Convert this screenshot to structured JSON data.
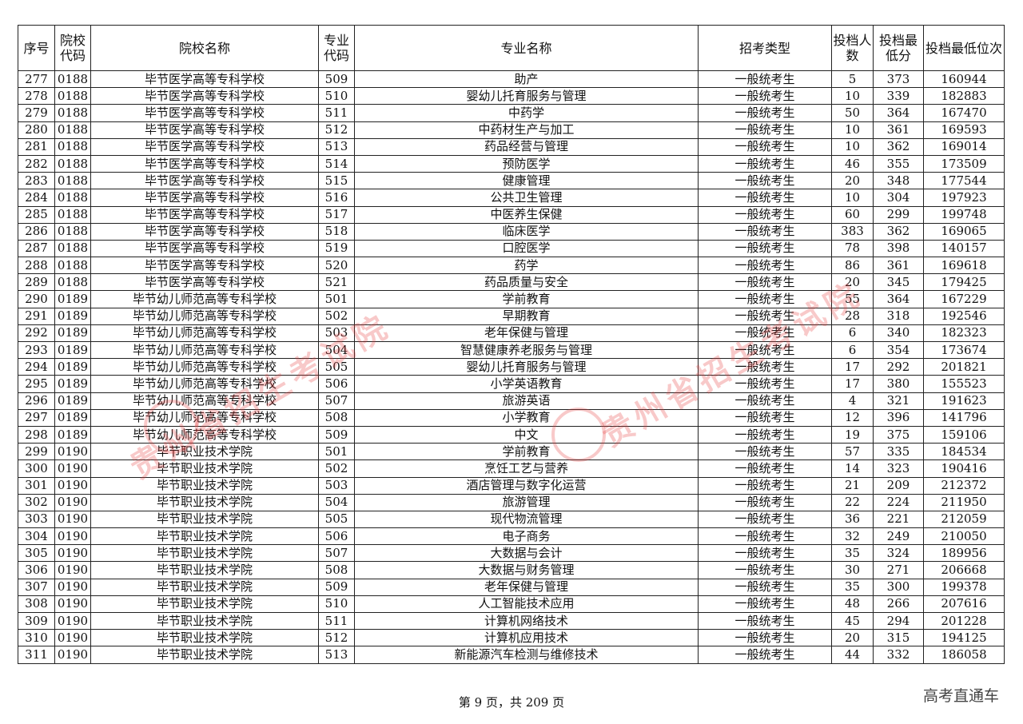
{
  "headers": [
    "序号",
    "院校代码",
    "院校名称",
    "专业代码",
    "专业名称",
    "招考类型",
    "投档人数",
    "投档最低分",
    "投档最低位次"
  ],
  "rows": [
    [
      "277",
      "0188",
      "毕节医学高等专科学校",
      "509",
      "助产",
      "一般统考生",
      "5",
      "373",
      "160944"
    ],
    [
      "278",
      "0188",
      "毕节医学高等专科学校",
      "510",
      "婴幼儿托育服务与管理",
      "一般统考生",
      "10",
      "339",
      "182883"
    ],
    [
      "279",
      "0188",
      "毕节医学高等专科学校",
      "511",
      "中药学",
      "一般统考生",
      "50",
      "364",
      "167470"
    ],
    [
      "280",
      "0188",
      "毕节医学高等专科学校",
      "512",
      "中药材生产与加工",
      "一般统考生",
      "10",
      "361",
      "169593"
    ],
    [
      "281",
      "0188",
      "毕节医学高等专科学校",
      "513",
      "药品经营与管理",
      "一般统考生",
      "10",
      "362",
      "169014"
    ],
    [
      "282",
      "0188",
      "毕节医学高等专科学校",
      "514",
      "预防医学",
      "一般统考生",
      "46",
      "355",
      "173509"
    ],
    [
      "283",
      "0188",
      "毕节医学高等专科学校",
      "515",
      "健康管理",
      "一般统考生",
      "20",
      "348",
      "177544"
    ],
    [
      "284",
      "0188",
      "毕节医学高等专科学校",
      "516",
      "公共卫生管理",
      "一般统考生",
      "10",
      "304",
      "197923"
    ],
    [
      "285",
      "0188",
      "毕节医学高等专科学校",
      "517",
      "中医养生保健",
      "一般统考生",
      "60",
      "299",
      "199748"
    ],
    [
      "286",
      "0188",
      "毕节医学高等专科学校",
      "518",
      "临床医学",
      "一般统考生",
      "383",
      "362",
      "169065"
    ],
    [
      "287",
      "0188",
      "毕节医学高等专科学校",
      "519",
      "口腔医学",
      "一般统考生",
      "78",
      "398",
      "140157"
    ],
    [
      "288",
      "0188",
      "毕节医学高等专科学校",
      "520",
      "药学",
      "一般统考生",
      "86",
      "361",
      "169618"
    ],
    [
      "289",
      "0188",
      "毕节医学高等专科学校",
      "521",
      "药品质量与安全",
      "一般统考生",
      "20",
      "345",
      "179425"
    ],
    [
      "290",
      "0189",
      "毕节幼儿师范高等专科学校",
      "501",
      "学前教育",
      "一般统考生",
      "55",
      "364",
      "167229"
    ],
    [
      "291",
      "0189",
      "毕节幼儿师范高等专科学校",
      "502",
      "早期教育",
      "一般统考生",
      "28",
      "318",
      "192546"
    ],
    [
      "292",
      "0189",
      "毕节幼儿师范高等专科学校",
      "503",
      "老年保健与管理",
      "一般统考生",
      "6",
      "340",
      "182323"
    ],
    [
      "293",
      "0189",
      "毕节幼儿师范高等专科学校",
      "504",
      "智慧健康养老服务与管理",
      "一般统考生",
      "6",
      "354",
      "173674"
    ],
    [
      "294",
      "0189",
      "毕节幼儿师范高等专科学校",
      "505",
      "婴幼儿托育服务与管理",
      "一般统考生",
      "17",
      "292",
      "201821"
    ],
    [
      "295",
      "0189",
      "毕节幼儿师范高等专科学校",
      "506",
      "小学英语教育",
      "一般统考生",
      "17",
      "380",
      "155523"
    ],
    [
      "296",
      "0189",
      "毕节幼儿师范高等专科学校",
      "507",
      "旅游英语",
      "一般统考生",
      "4",
      "321",
      "191623"
    ],
    [
      "297",
      "0189",
      "毕节幼儿师范高等专科学校",
      "508",
      "小学教育",
      "一般统考生",
      "12",
      "396",
      "141796"
    ],
    [
      "298",
      "0189",
      "毕节幼儿师范高等专科学校",
      "509",
      "中文",
      "一般统考生",
      "19",
      "375",
      "159106"
    ],
    [
      "299",
      "0190",
      "毕节职业技术学院",
      "501",
      "学前教育",
      "一般统考生",
      "57",
      "335",
      "184534"
    ],
    [
      "300",
      "0190",
      "毕节职业技术学院",
      "502",
      "烹饪工艺与营养",
      "一般统考生",
      "14",
      "323",
      "190416"
    ],
    [
      "301",
      "0190",
      "毕节职业技术学院",
      "503",
      "酒店管理与数字化运营",
      "一般统考生",
      "21",
      "209",
      "212372"
    ],
    [
      "302",
      "0190",
      "毕节职业技术学院",
      "504",
      "旅游管理",
      "一般统考生",
      "22",
      "224",
      "211950"
    ],
    [
      "303",
      "0190",
      "毕节职业技术学院",
      "505",
      "现代物流管理",
      "一般统考生",
      "36",
      "221",
      "212059"
    ],
    [
      "304",
      "0190",
      "毕节职业技术学院",
      "506",
      "电子商务",
      "一般统考生",
      "32",
      "249",
      "210050"
    ],
    [
      "305",
      "0190",
      "毕节职业技术学院",
      "507",
      "大数据与会计",
      "一般统考生",
      "35",
      "324",
      "189956"
    ],
    [
      "306",
      "0190",
      "毕节职业技术学院",
      "508",
      "大数据与财务管理",
      "一般统考生",
      "30",
      "271",
      "206668"
    ],
    [
      "307",
      "0190",
      "毕节职业技术学院",
      "509",
      "老年保健与管理",
      "一般统考生",
      "35",
      "300",
      "199378"
    ],
    [
      "308",
      "0190",
      "毕节职业技术学院",
      "510",
      "人工智能技术应用",
      "一般统考生",
      "48",
      "266",
      "207616"
    ],
    [
      "309",
      "0190",
      "毕节职业技术学院",
      "511",
      "计算机网络技术",
      "一般统考生",
      "45",
      "294",
      "201228"
    ],
    [
      "310",
      "0190",
      "毕节职业技术学院",
      "512",
      "计算机应用技术",
      "一般统考生",
      "20",
      "315",
      "194125"
    ],
    [
      "311",
      "0190",
      "毕节职业技术学院",
      "513",
      "新能源汽车检测与维修技术",
      "一般统考生",
      "44",
      "332",
      "186058"
    ]
  ],
  "watermark": "贵州省招生考试院",
  "footer": "第 9 页，共 209 页",
  "brand": "高考直通车",
  "watermark_color": "#e63c3c"
}
